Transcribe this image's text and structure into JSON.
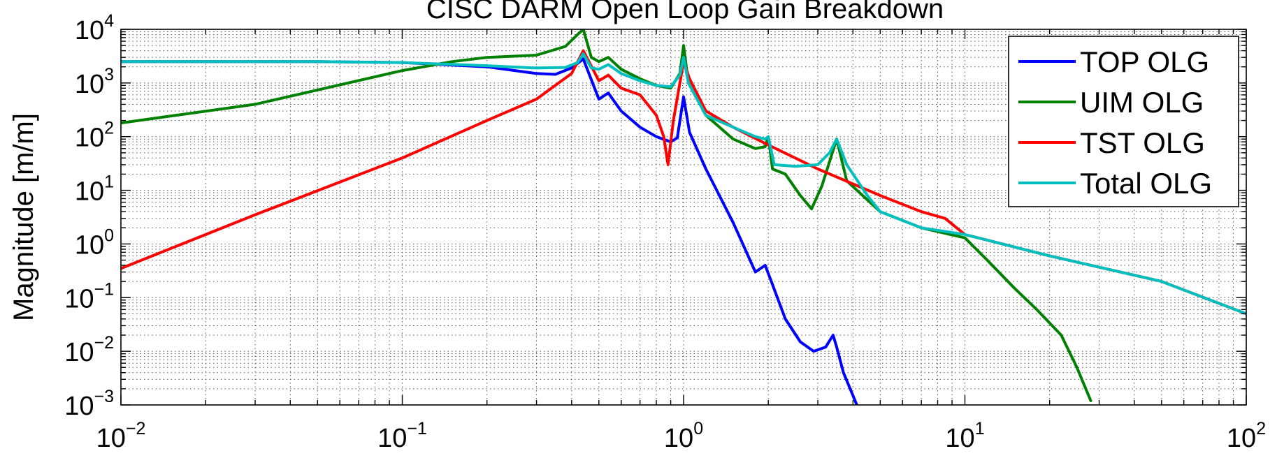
{
  "chart_data": {
    "type": "line",
    "title": "CISC DARM Open Loop Gain Breakdown",
    "xlabel": "",
    "ylabel": "Magnitude [m/m]",
    "xscale": "log",
    "yscale": "log",
    "xlim": [
      0.01,
      100
    ],
    "ylim": [
      0.001,
      10000
    ],
    "xticks": [
      {
        "base": "10",
        "exp": "−2"
      },
      {
        "base": "10",
        "exp": "−1"
      },
      {
        "base": "10",
        "exp": "0"
      },
      {
        "base": "10",
        "exp": "1"
      },
      {
        "base": "10",
        "exp": "2"
      }
    ],
    "yticks": [
      {
        "base": "10",
        "exp": "−3"
      },
      {
        "base": "10",
        "exp": "−2"
      },
      {
        "base": "10",
        "exp": "−1"
      },
      {
        "base": "10",
        "exp": "0"
      },
      {
        "base": "10",
        "exp": "1"
      },
      {
        "base": "10",
        "exp": "2"
      },
      {
        "base": "10",
        "exp": "3"
      },
      {
        "base": "10",
        "exp": "4"
      }
    ],
    "grid": true,
    "legend_position": "top-right",
    "series": [
      {
        "name": "TOP OLG",
        "color": "#0000ff",
        "x": [
          0.01,
          0.05,
          0.1,
          0.2,
          0.3,
          0.35,
          0.4,
          0.44,
          0.5,
          0.54,
          0.6,
          0.7,
          0.8,
          0.9,
          0.95,
          1.0,
          1.05,
          1.2,
          1.5,
          1.8,
          1.95,
          2.05,
          2.3,
          2.6,
          2.9,
          3.2,
          3.4,
          3.5,
          3.7,
          4.0,
          4.2
        ],
        "y": [
          2500,
          2500,
          2400,
          2000,
          1500,
          1450,
          1900,
          2800,
          500,
          650,
          300,
          150,
          100,
          80,
          95,
          550,
          120,
          25,
          2.5,
          0.3,
          0.4,
          0.2,
          0.04,
          0.015,
          0.01,
          0.012,
          0.02,
          0.012,
          0.004,
          0.0015,
          0.0008
        ]
      },
      {
        "name": "UIM OLG",
        "color": "#008000",
        "x": [
          0.01,
          0.03,
          0.1,
          0.15,
          0.2,
          0.3,
          0.38,
          0.42,
          0.44,
          0.47,
          0.5,
          0.54,
          0.6,
          0.7,
          0.8,
          0.9,
          0.97,
          1.0,
          1.04,
          1.2,
          1.5,
          1.8,
          1.95,
          2.0,
          2.07,
          2.3,
          2.6,
          2.85,
          3.1,
          3.5,
          3.8,
          5.0,
          7.0,
          10.0,
          12.0,
          15.0,
          18.0,
          22.0,
          25.0,
          28.0
        ],
        "y": [
          180,
          400,
          1700,
          2500,
          3000,
          3300,
          4800,
          8000,
          10000,
          3000,
          2500,
          3000,
          1800,
          1200,
          900,
          800,
          1500,
          5000,
          1000,
          250,
          90,
          60,
          65,
          100,
          25,
          20,
          8,
          4.5,
          12,
          90,
          15,
          4,
          2,
          1.3,
          0.5,
          0.15,
          0.06,
          0.02,
          0.005,
          0.0012
        ]
      },
      {
        "name": "TST OLG",
        "color": "#ff0000",
        "x": [
          0.01,
          0.03,
          0.1,
          0.2,
          0.3,
          0.4,
          0.44,
          0.5,
          0.54,
          0.6,
          0.7,
          0.8,
          0.85,
          0.88,
          0.92,
          0.97,
          1.0,
          1.05,
          1.2,
          1.5,
          2.0,
          3.0,
          5.0,
          7.0,
          8.5,
          10.0,
          20.0,
          50.0,
          100.0
        ],
        "y": [
          0.35,
          3.5,
          40,
          200,
          500,
          1500,
          4000,
          1100,
          1400,
          800,
          600,
          250,
          100,
          30,
          200,
          1000,
          2500,
          1200,
          300,
          150,
          70,
          25,
          8,
          4,
          3,
          1.5,
          0.6,
          0.2,
          0.05
        ]
      },
      {
        "name": "Total OLG",
        "color": "#00bfbf",
        "x": [
          0.01,
          0.05,
          0.1,
          0.2,
          0.3,
          0.38,
          0.42,
          0.44,
          0.47,
          0.5,
          0.54,
          0.6,
          0.7,
          0.8,
          0.9,
          0.97,
          1.0,
          1.04,
          1.2,
          1.5,
          1.8,
          1.95,
          2.0,
          2.1,
          2.5,
          3.0,
          3.3,
          3.5,
          3.8,
          4.5,
          5.0,
          7.0,
          10.0,
          20.0,
          50.0,
          100.0
        ],
        "y": [
          2500,
          2500,
          2400,
          2100,
          1900,
          1950,
          2400,
          3500,
          1900,
          1800,
          2200,
          1500,
          1100,
          900,
          850,
          1400,
          3000,
          1000,
          250,
          150,
          100,
          90,
          100,
          30,
          28,
          30,
          50,
          90,
          30,
          8,
          4,
          2,
          1.5,
          0.6,
          0.2,
          0.05
        ]
      }
    ]
  }
}
